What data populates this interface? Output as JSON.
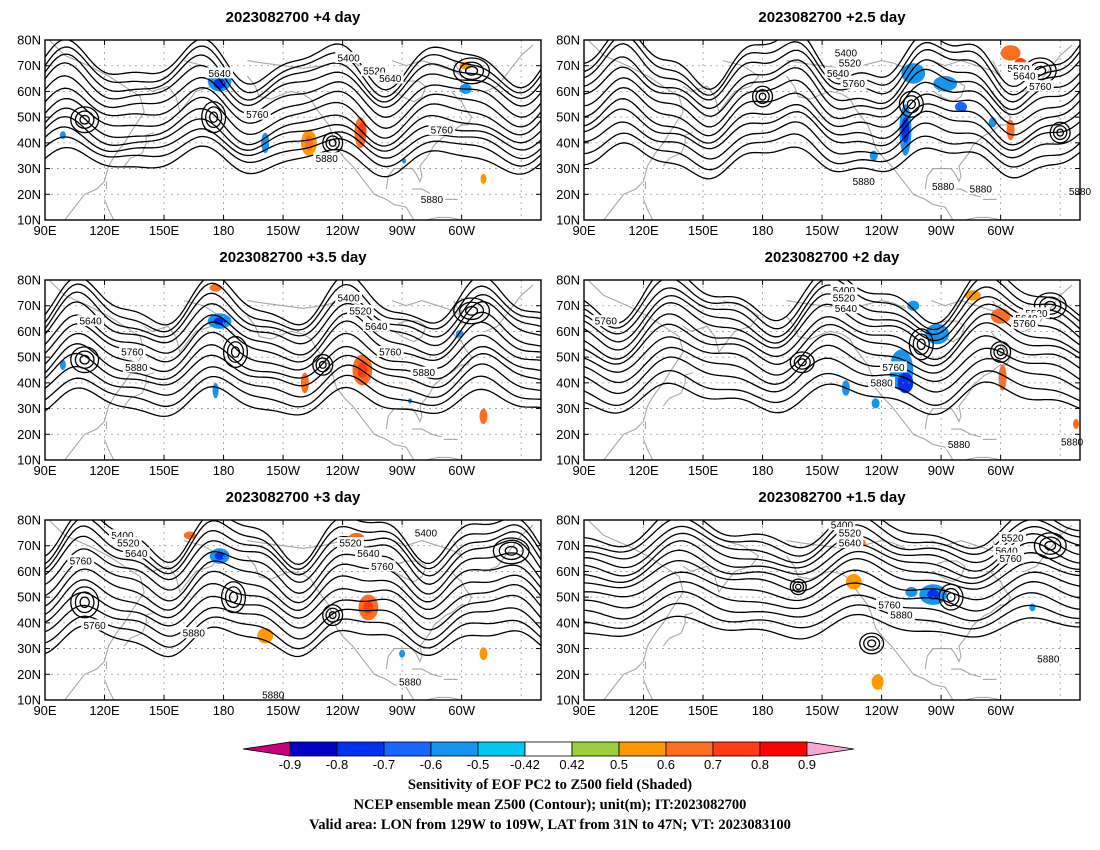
{
  "panels": [
    {
      "title": "2023082700 +4 day",
      "contour_labels": [
        {
          "text": "5400",
          "lon": 243,
          "lat": 73
        },
        {
          "text": "5520",
          "lon": 256,
          "lat": 68
        },
        {
          "text": "5640",
          "lon": 178,
          "lat": 67
        },
        {
          "text": "5640",
          "lon": 264,
          "lat": 65
        },
        {
          "text": "5760",
          "lon": 197,
          "lat": 51
        },
        {
          "text": "5760",
          "lon": 290,
          "lat": 45
        },
        {
          "text": "5880",
          "lon": 232,
          "lat": 34
        },
        {
          "text": "5880",
          "lon": 285,
          "lat": 18
        }
      ],
      "blobs": [
        {
          "lon": 178,
          "lat": 64,
          "rx": 6,
          "ry": 4,
          "v": -0.6
        },
        {
          "lon": 178,
          "lat": 63,
          "rx": 3,
          "ry": 2,
          "v": -0.75
        },
        {
          "lon": 223,
          "lat": 40,
          "rx": 4,
          "ry": 5,
          "v": 0.5
        },
        {
          "lon": 223,
          "lat": 40,
          "rx": 2,
          "ry": 3,
          "v": 0.6
        },
        {
          "lon": 249,
          "lat": 44,
          "rx": 3,
          "ry": 6,
          "v": 0.6
        },
        {
          "lon": 250,
          "lat": 45,
          "rx": 2,
          "ry": 3,
          "v": 0.75
        },
        {
          "lon": 201,
          "lat": 40,
          "rx": 2,
          "ry": 4,
          "v": -0.55
        },
        {
          "lon": 99,
          "lat": 43,
          "rx": 1.5,
          "ry": 1.5,
          "v": -0.55
        },
        {
          "lon": 302,
          "lat": 61,
          "rx": 3,
          "ry": 2,
          "v": -0.55
        },
        {
          "lon": 311,
          "lat": 26,
          "rx": 1.5,
          "ry": 2,
          "v": 0.5
        },
        {
          "lon": 302,
          "lat": 70,
          "rx": 3,
          "ry": 1.5,
          "v": 0.5
        },
        {
          "lon": 271,
          "lat": 33,
          "rx": 1,
          "ry": 1,
          "v": -0.55
        }
      ]
    },
    {
      "title": "2023082700 +2.5 day",
      "contour_labels": [
        {
          "text": "5400",
          "lon": 222,
          "lat": 75
        },
        {
          "text": "5520",
          "lon": 224,
          "lat": 71
        },
        {
          "text": "5640",
          "lon": 218,
          "lat": 67
        },
        {
          "text": "5760",
          "lon": 226,
          "lat": 63
        },
        {
          "text": "5520",
          "lon": 309,
          "lat": 69
        },
        {
          "text": "5640",
          "lon": 312,
          "lat": 66
        },
        {
          "text": "5760",
          "lon": 320,
          "lat": 62
        },
        {
          "text": "5880",
          "lon": 231,
          "lat": 25
        },
        {
          "text": "5880",
          "lon": 271,
          "lat": 23
        },
        {
          "text": "5880",
          "lon": 290,
          "lat": 22
        },
        {
          "text": "5880",
          "lon": 340,
          "lat": 21
        }
      ],
      "blobs": [
        {
          "lon": 256,
          "lat": 67,
          "rx": 6,
          "ry": 4,
          "v": -0.55
        },
        {
          "lon": 272,
          "lat": 63,
          "rx": 6,
          "ry": 3,
          "v": -0.6
        },
        {
          "lon": 252,
          "lat": 45,
          "rx": 3,
          "ry": 10,
          "v": -0.6
        },
        {
          "lon": 252,
          "lat": 45,
          "rx": 2,
          "ry": 5,
          "v": -0.75
        },
        {
          "lon": 305,
          "lat": 75,
          "rx": 5,
          "ry": 3,
          "v": 0.6
        },
        {
          "lon": 310,
          "lat": 71,
          "rx": 3,
          "ry": 2,
          "v": 0.75
        },
        {
          "lon": 305,
          "lat": 45,
          "rx": 2,
          "ry": 4,
          "v": 0.6
        },
        {
          "lon": 236,
          "lat": 35,
          "rx": 2,
          "ry": 2,
          "v": -0.55
        },
        {
          "lon": 296,
          "lat": 48,
          "rx": 2,
          "ry": 2,
          "v": -0.55
        },
        {
          "lon": 280,
          "lat": 54,
          "rx": 3,
          "ry": 2,
          "v": -0.7
        }
      ]
    },
    {
      "title": "2023082700 +3.5 day",
      "contour_labels": [
        {
          "text": "5400",
          "lon": 243,
          "lat": 73
        },
        {
          "text": "5520",
          "lon": 249,
          "lat": 68
        },
        {
          "text": "5640",
          "lon": 113,
          "lat": 64
        },
        {
          "text": "5640",
          "lon": 257,
          "lat": 62
        },
        {
          "text": "5760",
          "lon": 134,
          "lat": 52
        },
        {
          "text": "5760",
          "lon": 264,
          "lat": 52
        },
        {
          "text": "5880",
          "lon": 136,
          "lat": 46
        },
        {
          "text": "5880",
          "lon": 281,
          "lat": 44
        }
      ],
      "blobs": [
        {
          "lon": 178,
          "lat": 64,
          "rx": 6,
          "ry": 3,
          "v": -0.6
        },
        {
          "lon": 178,
          "lat": 64,
          "rx": 3,
          "ry": 1.5,
          "v": -0.75
        },
        {
          "lon": 250,
          "lat": 45,
          "rx": 5,
          "ry": 6,
          "v": 0.6
        },
        {
          "lon": 250,
          "lat": 45,
          "rx": 2.5,
          "ry": 3,
          "v": 0.75
        },
        {
          "lon": 221,
          "lat": 40,
          "rx": 2,
          "ry": 4,
          "v": 0.6
        },
        {
          "lon": 176,
          "lat": 37,
          "rx": 1.5,
          "ry": 3,
          "v": -0.55
        },
        {
          "lon": 176,
          "lat": 77,
          "rx": 3,
          "ry": 1.5,
          "v": 0.6
        },
        {
          "lon": 299,
          "lat": 59,
          "rx": 2,
          "ry": 1.5,
          "v": -0.55
        },
        {
          "lon": 311,
          "lat": 27,
          "rx": 2,
          "ry": 3,
          "v": 0.6
        },
        {
          "lon": 274,
          "lat": 33,
          "rx": 1,
          "ry": 1,
          "v": -0.6
        },
        {
          "lon": 99,
          "lat": 47,
          "rx": 1.5,
          "ry": 2,
          "v": -0.55
        }
      ]
    },
    {
      "title": "2023082700 +2 day",
      "contour_labels": [
        {
          "text": "5400",
          "lon": 221,
          "lat": 76
        },
        {
          "text": "5520",
          "lon": 221,
          "lat": 73
        },
        {
          "text": "5640",
          "lon": 222,
          "lat": 69
        },
        {
          "text": "5760",
          "lon": 101,
          "lat": 64
        },
        {
          "text": "5520",
          "lon": 318,
          "lat": 67
        },
        {
          "text": "5640",
          "lon": 313,
          "lat": 65
        },
        {
          "text": "5760",
          "lon": 312,
          "lat": 63
        },
        {
          "text": "5760",
          "lon": 246,
          "lat": 46
        },
        {
          "text": "5880",
          "lon": 240,
          "lat": 40
        },
        {
          "text": "5880",
          "lon": 279,
          "lat": 16
        },
        {
          "text": "5880",
          "lon": 336,
          "lat": 17
        }
      ],
      "blobs": [
        {
          "lon": 250,
          "lat": 45,
          "rx": 6,
          "ry": 8,
          "v": -0.6
        },
        {
          "lon": 252,
          "lat": 40,
          "rx": 4,
          "ry": 4,
          "v": -0.75
        },
        {
          "lon": 268,
          "lat": 59,
          "rx": 6,
          "ry": 4,
          "v": -0.6
        },
        {
          "lon": 256,
          "lat": 70,
          "rx": 3,
          "ry": 2,
          "v": -0.55
        },
        {
          "lon": 300,
          "lat": 66,
          "rx": 5,
          "ry": 3,
          "v": 0.6
        },
        {
          "lon": 301,
          "lat": 42,
          "rx": 2,
          "ry": 5,
          "v": 0.6
        },
        {
          "lon": 222,
          "lat": 38,
          "rx": 2,
          "ry": 3,
          "v": -0.55
        },
        {
          "lon": 237,
          "lat": 32,
          "rx": 2,
          "ry": 2,
          "v": -0.55
        },
        {
          "lon": 286,
          "lat": 74,
          "rx": 4,
          "ry": 2,
          "v": 0.5
        },
        {
          "lon": 338,
          "lat": 24,
          "rx": 1.5,
          "ry": 2,
          "v": 0.6
        }
      ]
    },
    {
      "title": "2023082700 +3 day",
      "contour_labels": [
        {
          "text": "5400",
          "lon": 129,
          "lat": 74
        },
        {
          "text": "5520",
          "lon": 132,
          "lat": 71
        },
        {
          "text": "5640",
          "lon": 136,
          "lat": 67
        },
        {
          "text": "5760",
          "lon": 108,
          "lat": 64
        },
        {
          "text": "5760",
          "lon": 115,
          "lat": 39
        },
        {
          "text": "5400",
          "lon": 282,
          "lat": 75
        },
        {
          "text": "5520",
          "lon": 244,
          "lat": 71
        },
        {
          "text": "5640",
          "lon": 253,
          "lat": 67
        },
        {
          "text": "5760",
          "lon": 260,
          "lat": 62
        },
        {
          "text": "5880",
          "lon": 165,
          "lat": 36
        },
        {
          "text": "5880",
          "lon": 274,
          "lat": 17
        },
        {
          "text": "5880",
          "lon": 205,
          "lat": 12
        }
      ],
      "blobs": [
        {
          "lon": 178,
          "lat": 66,
          "rx": 5,
          "ry": 3,
          "v": -0.6
        },
        {
          "lon": 178,
          "lat": 66,
          "rx": 2.5,
          "ry": 1.5,
          "v": -0.75
        },
        {
          "lon": 253,
          "lat": 46,
          "rx": 5,
          "ry": 5,
          "v": 0.6
        },
        {
          "lon": 253,
          "lat": 46,
          "rx": 2.5,
          "ry": 2.5,
          "v": 0.75
        },
        {
          "lon": 201,
          "lat": 35,
          "rx": 4,
          "ry": 3,
          "v": 0.5
        },
        {
          "lon": 247,
          "lat": 73,
          "rx": 4,
          "ry": 2,
          "v": 0.6
        },
        {
          "lon": 270,
          "lat": 28,
          "rx": 1.5,
          "ry": 1.5,
          "v": -0.55
        },
        {
          "lon": 311,
          "lat": 28,
          "rx": 2,
          "ry": 2.5,
          "v": 0.5
        },
        {
          "lon": 163,
          "lat": 74,
          "rx": 3,
          "ry": 1.5,
          "v": 0.6
        }
      ]
    },
    {
      "title": "2023082700 +1.5 day",
      "contour_labels": [
        {
          "text": "5400",
          "lon": 220,
          "lat": 78
        },
        {
          "text": "5520",
          "lon": 224,
          "lat": 75
        },
        {
          "text": "5640",
          "lon": 224,
          "lat": 71
        },
        {
          "text": "5520",
          "lon": 306,
          "lat": 73
        },
        {
          "text": "5640",
          "lon": 303,
          "lat": 68
        },
        {
          "text": "5760",
          "lon": 305,
          "lat": 65
        },
        {
          "text": "5760",
          "lon": 244,
          "lat": 47
        },
        {
          "text": "5880",
          "lon": 250,
          "lat": 43
        },
        {
          "text": "5880",
          "lon": 324,
          "lat": 26
        }
      ],
      "blobs": [
        {
          "lon": 266,
          "lat": 51,
          "rx": 7,
          "ry": 4,
          "v": -0.6
        },
        {
          "lon": 266,
          "lat": 51,
          "rx": 3,
          "ry": 2,
          "v": -0.75
        },
        {
          "lon": 255,
          "lat": 52,
          "rx": 3,
          "ry": 2,
          "v": -0.55
        },
        {
          "lon": 228,
          "lat": 71,
          "rx": 4,
          "ry": 2,
          "v": 0.6
        },
        {
          "lon": 226,
          "lat": 56,
          "rx": 4,
          "ry": 3,
          "v": 0.5
        },
        {
          "lon": 238,
          "lat": 17,
          "rx": 3,
          "ry": 3,
          "v": 0.5
        },
        {
          "lon": 316,
          "lat": 46,
          "rx": 1.5,
          "ry": 1.5,
          "v": -0.55
        }
      ]
    }
  ],
  "axes": {
    "lat_ticks": [
      "80N",
      "70N",
      "60N",
      "50N",
      "40N",
      "30N",
      "20N",
      "10N"
    ],
    "lon_ticks": [
      "90E",
      "120E",
      "150E",
      "180",
      "150W",
      "120W",
      "90W",
      "60W"
    ]
  },
  "colorbar": {
    "tick_labels": [
      "-0.9",
      "-0.8",
      "-0.7",
      "-0.6",
      "-0.5",
      "-0.42",
      "0.42",
      "0.5",
      "0.6",
      "0.7",
      "0.8",
      "0.9"
    ],
    "colors": [
      "#0000c8",
      "#0030f0",
      "#1a66ff",
      "#1496f0",
      "#00c8f0",
      "#ffffff",
      "#9bd03c",
      "#ff9900",
      "#ff6e1e",
      "#ff3c14",
      "#ff0000"
    ],
    "low_color": "#c8007a",
    "high_color": "#f8a6d2"
  },
  "captions": [
    "Sensitivity of EOF PC2 to Z500 field (Shaded)",
    "NCEP ensemble mean Z500 (Contour); unit(m); IT:2023082700",
    "Valid area: LON from 129W to 109W, LAT from 31N to 47N; VT: 2023083100"
  ]
}
